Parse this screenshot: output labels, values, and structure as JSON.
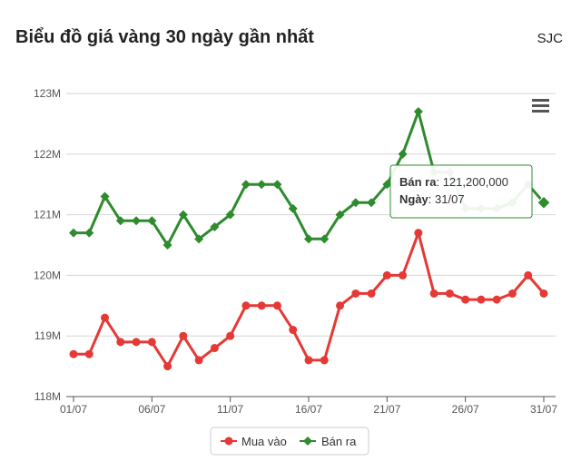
{
  "header": {
    "title": "Biểu đồ giá vàng 30 ngày gần nhất",
    "source": "SJC"
  },
  "chart_data": {
    "type": "line",
    "title": "Biểu đồ giá vàng 30 ngày gần nhất",
    "x_tick_labels": [
      "01/07",
      "06/07",
      "11/07",
      "16/07",
      "21/07",
      "26/07",
      "31/07"
    ],
    "y_tick_labels": [
      "118M",
      "119M",
      "120M",
      "121M",
      "122M",
      "123M"
    ],
    "ylim": [
      118000000,
      123000000
    ],
    "grid": true,
    "legend_position": "bottom-center",
    "x": [
      "01/07",
      "02/07",
      "03/07",
      "04/07",
      "05/07",
      "06/07",
      "07/07",
      "08/07",
      "09/07",
      "10/07",
      "11/07",
      "12/07",
      "13/07",
      "14/07",
      "15/07",
      "16/07",
      "17/07",
      "18/07",
      "19/07",
      "20/07",
      "21/07",
      "22/07",
      "23/07",
      "24/07",
      "25/07",
      "26/07",
      "27/07",
      "28/07",
      "29/07",
      "30/07",
      "31/07"
    ],
    "series": [
      {
        "name": "Mua vào",
        "color": "#e53935",
        "values": [
          118700000,
          118700000,
          119300000,
          118900000,
          118900000,
          118900000,
          118500000,
          119000000,
          118600000,
          118800000,
          119000000,
          119500000,
          119500000,
          119500000,
          119100000,
          118600000,
          118600000,
          119500000,
          119700000,
          119700000,
          120000000,
          120000000,
          120700000,
          119700000,
          119700000,
          119600000,
          119600000,
          119600000,
          119700000,
          120000000,
          119700000
        ]
      },
      {
        "name": "Bán ra",
        "color": "#2e8b2e",
        "values": [
          120700000,
          120700000,
          121300000,
          120900000,
          120900000,
          120900000,
          120500000,
          121000000,
          120600000,
          120800000,
          121000000,
          121500000,
          121500000,
          121500000,
          121100000,
          120600000,
          120600000,
          121000000,
          121200000,
          121200000,
          121500000,
          122000000,
          122700000,
          121700000,
          121700000,
          121100000,
          121100000,
          121100000,
          121200000,
          121500000,
          121200000
        ]
      }
    ],
    "tooltip": {
      "label_sell": "Bán ra",
      "value": "121,200,000",
      "label_date": "Ngày",
      "date": "31/07"
    }
  }
}
